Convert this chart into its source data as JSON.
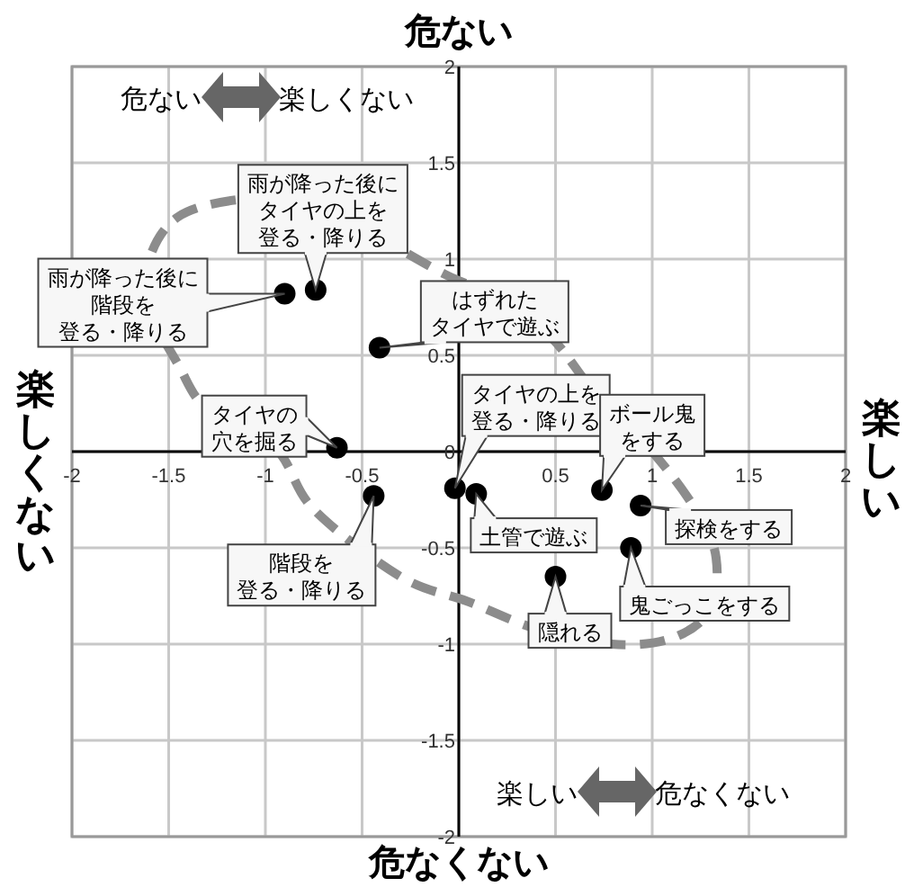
{
  "chart_data": {
    "type": "scatter",
    "x": [
      -0.74,
      -0.9,
      -0.41,
      -0.63,
      -0.44,
      -0.02,
      0.09,
      0.74,
      0.94,
      0.89,
      0.5
    ],
    "values": [
      0.84,
      0.82,
      0.54,
      0.02,
      -0.23,
      -0.19,
      -0.22,
      -0.2,
      -0.28,
      -0.5,
      -0.65
    ],
    "color": "#000000",
    "marker": "circle",
    "grid": true,
    "xlim": [
      -2,
      2
    ],
    "ylim": [
      -2,
      2
    ],
    "xticks": [
      -2,
      -1.5,
      -1,
      -0.5,
      {
        "value": 0,
        "label": null
      },
      0.5,
      1,
      1.5,
      2
    ],
    "yticks": [
      -2,
      -1.5,
      -1,
      -0.5,
      0,
      0.5,
      1,
      1.5,
      2
    ],
    "annotations": [
      "危ない",
      "危なくない",
      "楽しくない",
      "楽しい",
      "危ない",
      "楽しくない",
      "楽しい",
      "危なくない",
      {
        "text": "雨が降った後にタイヤの上を登る・降りる",
        "x": -0.74,
        "y": 0.84
      },
      {
        "text": "雨が降った後に階段を登る・降りる",
        "x": -0.9,
        "y": 0.82
      },
      {
        "text": "はずれたタイヤで遊ぶ",
        "x": -0.41,
        "y": 0.54
      },
      {
        "text": "タイヤの穴を掘る",
        "x": -0.63,
        "y": 0.02
      },
      {
        "text": "階段を登る・降りる",
        "x": -0.44,
        "y": -0.23
      },
      {
        "text": "タイヤの上を登る・降りる",
        "x": -0.02,
        "y": -0.19
      },
      {
        "text": "土管で遊ぶ",
        "x": 0.09,
        "y": -0.22
      },
      {
        "text": "ボール鬼をする",
        "x": 0.74,
        "y": -0.2
      },
      {
        "text": "探検をする",
        "x": 0.94,
        "y": -0.28
      },
      {
        "text": "鬼ごっこをする",
        "x": 0.89,
        "y": -0.5
      },
      {
        "text": "隠れる",
        "x": 0.5,
        "y": -0.65
      }
    ]
  }
}
